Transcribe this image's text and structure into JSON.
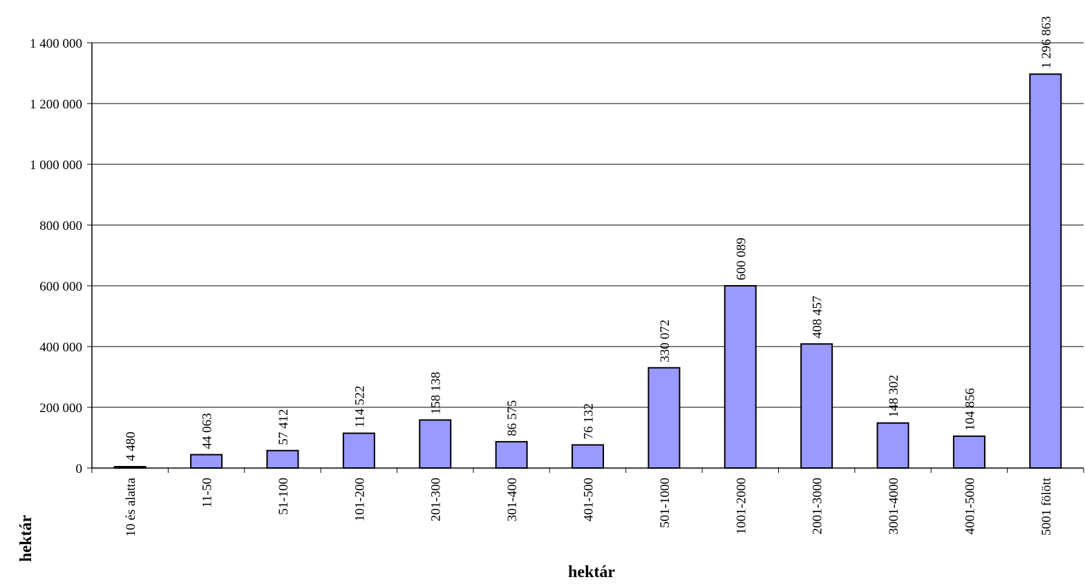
{
  "chart_data": {
    "type": "bar",
    "title": "",
    "xlabel": "hektár",
    "ylabel": "hektár",
    "categories": [
      "10 és alatta",
      "11-50",
      "51-100",
      "101-200",
      "201-300",
      "301-400",
      "401-500",
      "501-1000",
      "1001-2000",
      "2001-3000",
      "3001-4000",
      "4001-5000",
      "5001 fölött"
    ],
    "values": [
      4480,
      44063,
      57412,
      114522,
      158138,
      86575,
      76132,
      330072,
      600089,
      408457,
      148302,
      104856,
      1296863
    ],
    "value_labels": [
      "4 480",
      "44 063",
      "57 412",
      "114 522",
      "158 138",
      "86 575",
      "76 132",
      "330 072",
      "600 089",
      "408 457",
      "148 302",
      "104 856",
      "1 296 863"
    ],
    "yticks": [
      0,
      200000,
      400000,
      600000,
      800000,
      1000000,
      1200000,
      1400000
    ],
    "ytick_labels": [
      "0",
      "200 000",
      "400 000",
      "600 000",
      "800 000",
      "1 000 000",
      "1 200 000",
      "1 400 000"
    ],
    "ylim": [
      0,
      1400000
    ],
    "grid": true,
    "bar_color": "#9999ff",
    "bar_edge_color": "#000000",
    "legend": false
  }
}
